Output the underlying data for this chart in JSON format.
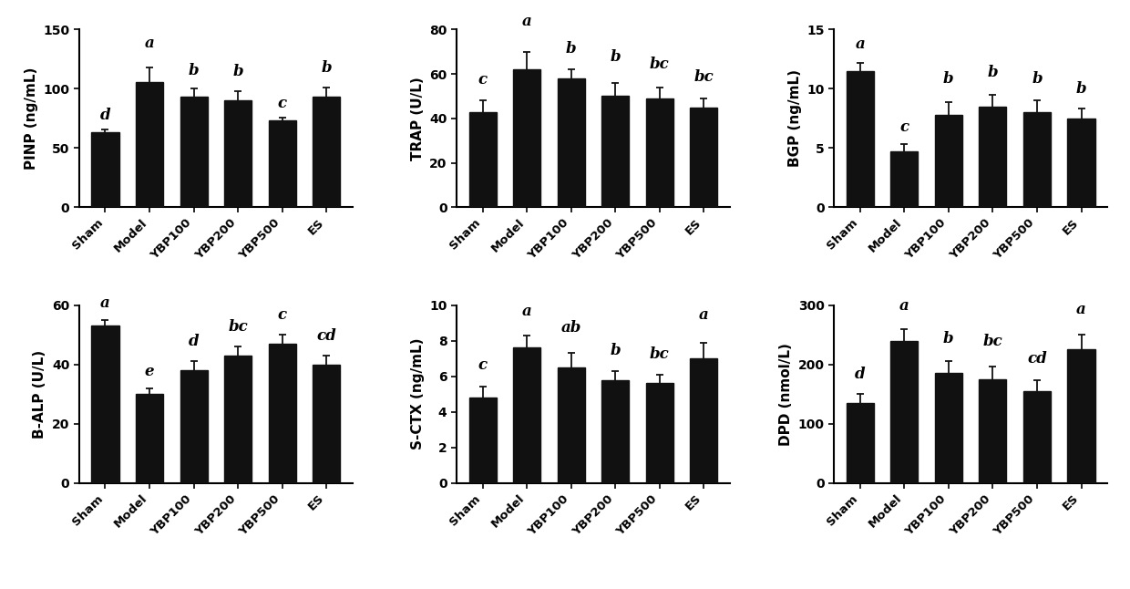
{
  "categories": [
    "Sham",
    "Model",
    "YBP100",
    "YBP200",
    "YBP500",
    "ES"
  ],
  "subplots": [
    {
      "ylabel": "PINP (ng/mL)",
      "ylim": [
        0,
        150
      ],
      "yticks": [
        0,
        50,
        100,
        150
      ],
      "values": [
        63,
        106,
        93,
        90,
        73,
        93
      ],
      "errors": [
        3,
        12,
        7,
        8,
        3,
        8
      ],
      "letters": [
        "d",
        "a",
        "b",
        "b",
        "c",
        "b"
      ],
      "letter_offsets": [
        5,
        14,
        9,
        10,
        5,
        10
      ]
    },
    {
      "ylabel": "TRAP (U/L)",
      "ylim": [
        0,
        80
      ],
      "yticks": [
        0,
        20,
        40,
        60,
        80
      ],
      "values": [
        43,
        62,
        58,
        50,
        49,
        45
      ],
      "errors": [
        5,
        8,
        4,
        6,
        5,
        4
      ],
      "letters": [
        "c",
        "a",
        "b",
        "b",
        "bc",
        "bc"
      ],
      "letter_offsets": [
        6,
        10,
        6,
        8,
        7,
        6
      ]
    },
    {
      "ylabel": "BGP (ng/mL)",
      "ylim": [
        0,
        15
      ],
      "yticks": [
        0,
        5,
        10,
        15
      ],
      "values": [
        11.5,
        4.7,
        7.8,
        8.5,
        8.0,
        7.5
      ],
      "errors": [
        0.7,
        0.6,
        1.1,
        1.0,
        1.0,
        0.8
      ],
      "letters": [
        "a",
        "c",
        "b",
        "b",
        "b",
        "b"
      ],
      "letter_offsets": [
        0.9,
        0.8,
        1.3,
        1.2,
        1.2,
        1.0
      ]
    },
    {
      "ylabel": "B-ALP (U/L)",
      "ylim": [
        0,
        60
      ],
      "yticks": [
        0,
        20,
        40,
        60
      ],
      "values": [
        53,
        30,
        38,
        43,
        47,
        40
      ],
      "errors": [
        2,
        2,
        3,
        3,
        3,
        3
      ],
      "letters": [
        "a",
        "e",
        "d",
        "bc",
        "c",
        "cd"
      ],
      "letter_offsets": [
        3,
        3,
        4,
        4,
        4,
        4
      ]
    },
    {
      "ylabel": "S-CTX (ng/mL)",
      "ylim": [
        0,
        10
      ],
      "yticks": [
        0,
        2,
        4,
        6,
        8,
        10
      ],
      "values": [
        4.8,
        7.6,
        6.5,
        5.8,
        5.6,
        7.0
      ],
      "errors": [
        0.6,
        0.7,
        0.8,
        0.5,
        0.5,
        0.9
      ],
      "letters": [
        "c",
        "a",
        "ab",
        "b",
        "bc",
        "a"
      ],
      "letter_offsets": [
        0.8,
        0.9,
        1.0,
        0.7,
        0.7,
        1.1
      ]
    },
    {
      "ylabel": "DPD (nmol/L)",
      "ylim": [
        0,
        300
      ],
      "yticks": [
        0,
        100,
        200,
        300
      ],
      "values": [
        135,
        240,
        185,
        175,
        155,
        225
      ],
      "errors": [
        15,
        20,
        20,
        22,
        18,
        25
      ],
      "letters": [
        "d",
        "a",
        "b",
        "bc",
        "cd",
        "a"
      ],
      "letter_offsets": [
        20,
        25,
        25,
        28,
        23,
        30
      ]
    }
  ],
  "bar_color": "#111111",
  "bar_width": 0.62,
  "error_color": "#111111",
  "letter_fontsize": 12,
  "label_fontsize": 11,
  "tick_fontsize": 10,
  "xtick_fontsize": 9.5
}
